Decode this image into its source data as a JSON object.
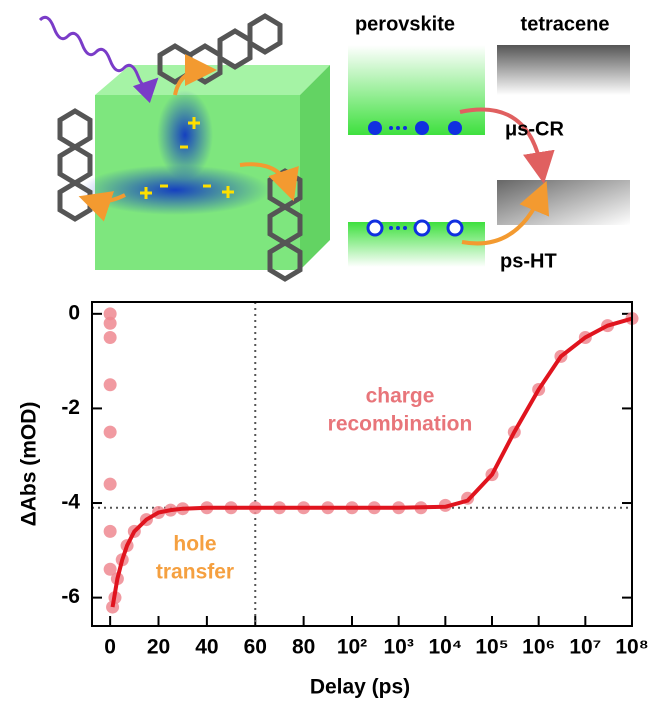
{
  "diagram": {
    "left_label": "perovskite",
    "right_label": "tetracene",
    "upper_arrow": "μs-CR",
    "lower_arrow": "ps-HT"
  },
  "chart_data": {
    "type": "scatter",
    "x_label": "Delay (ps)",
    "y_label": "ΔAbs (mOD)",
    "xlim": [
      -7.5,
      100000000
    ],
    "xscale": "linear-log",
    "xbreak": 100,
    "xticks": [
      0,
      20,
      40,
      60,
      80,
      {
        "value": 100,
        "label": "10²"
      },
      {
        "value": 1000,
        "label": "10³"
      },
      {
        "value": 10000,
        "label": "10⁴"
      },
      {
        "value": 100000,
        "label": "10⁵"
      },
      {
        "value": 1000000,
        "label": "10⁶"
      },
      {
        "value": 10000000,
        "label": "10⁷"
      },
      {
        "value": 100000000,
        "label": "10⁸"
      }
    ],
    "ylim": [
      -6.6,
      0.25
    ],
    "yticks": [
      0,
      -2,
      -4,
      -6
    ],
    "hlines": [
      -4.1
    ],
    "vlines": [
      60
    ],
    "series": [
      {
        "mode": "markers",
        "color": "#ee8890",
        "x": [
          0,
          0,
          0,
          0,
          0,
          0,
          0,
          0,
          1,
          2,
          3,
          5,
          7,
          10,
          15,
          20,
          25,
          30,
          40,
          50,
          60,
          70,
          80,
          90,
          100,
          300,
          1000,
          3000,
          10000,
          30000,
          100000,
          300000,
          1000000,
          3000000,
          10000000,
          30000000,
          100000000
        ],
        "values": [
          0,
          -0.2,
          -0.5,
          -1.5,
          -2.5,
          -3.6,
          -4.6,
          -5.4,
          -6.2,
          -6.0,
          -5.6,
          -5.2,
          -4.9,
          -4.6,
          -4.35,
          -4.2,
          -4.15,
          -4.12,
          -4.1,
          -4.1,
          -4.1,
          -4.1,
          -4.1,
          -4.1,
          -4.1,
          -4.1,
          -4.1,
          -4.1,
          -4.05,
          -3.9,
          -3.4,
          -2.5,
          -1.6,
          -0.9,
          -0.5,
          -0.25,
          -0.1
        ]
      },
      {
        "mode": "line",
        "color": "#e0141e",
        "x": [
          1,
          2,
          3,
          5,
          7,
          10,
          15,
          20,
          25,
          30,
          40,
          60,
          100,
          1000,
          10000,
          30000,
          100000,
          300000,
          1000000,
          3000000,
          10000000,
          30000000,
          100000000
        ],
        "values": [
          -6.2,
          -5.9,
          -5.6,
          -5.2,
          -4.9,
          -4.6,
          -4.35,
          -4.2,
          -4.15,
          -4.12,
          -4.1,
          -4.1,
          -4.1,
          -4.1,
          -4.08,
          -3.95,
          -3.4,
          -2.5,
          -1.6,
          -0.9,
          -0.5,
          -0.25,
          -0.1
        ]
      }
    ],
    "annotations": [
      {
        "lines": [
          "charge",
          "recombination"
        ],
        "color": "#e8757a"
      },
      {
        "lines": [
          "hole",
          "transfer"
        ],
        "color": "#f5a040"
      }
    ]
  }
}
